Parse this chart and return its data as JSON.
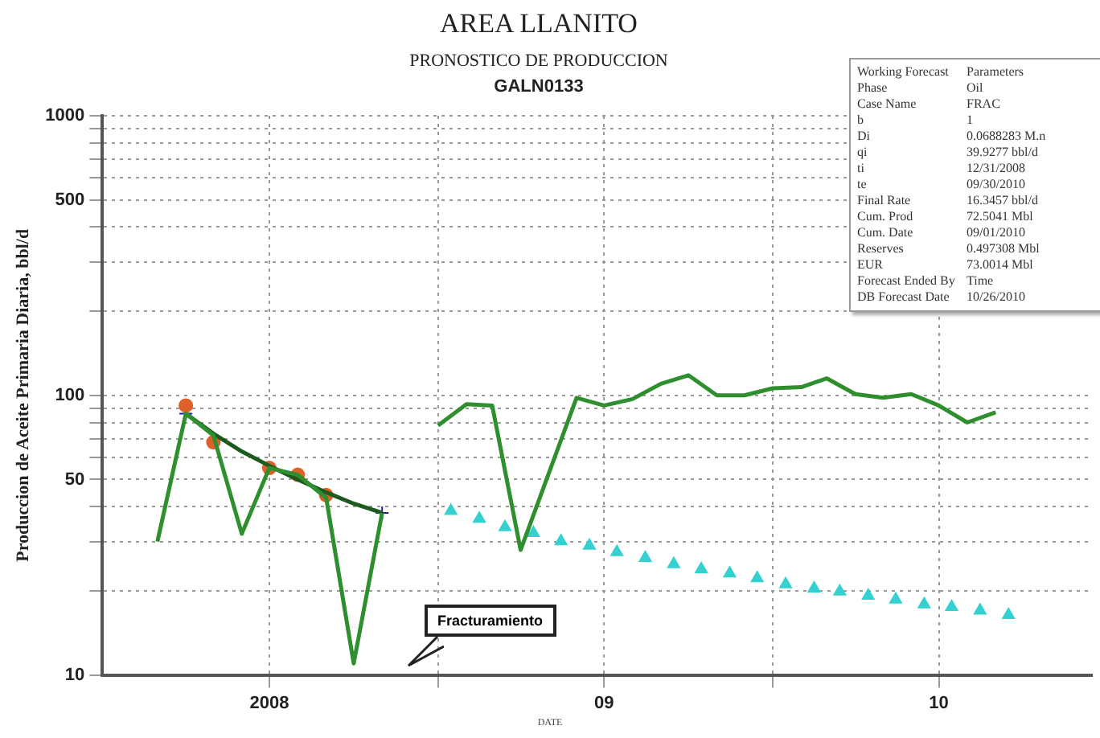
{
  "chart_data": {
    "type": "line",
    "title": "AREA LLANITO",
    "subtitle": "PRONOSTICO DE PRODUCCION\nGALN0133",
    "xlabel": "DATE",
    "ylabel": "Produccion de Aceite Primaria Diaria, bbl/d",
    "log": "y",
    "grid": true,
    "legend": false,
    "xlim": [
      "2008-01-01",
      "2010-12-15"
    ],
    "xticks": [
      {
        "value": "2008-07-01",
        "label": "2008"
      },
      {
        "value": "2009-01-01",
        "label": null
      },
      {
        "value": "2009-07-01",
        "label": "09"
      },
      {
        "value": "2010-01-01",
        "label": null
      },
      {
        "value": "2010-07-01",
        "label": "10"
      }
    ],
    "ylim": [
      10,
      1000
    ],
    "yticks": [
      10,
      {
        "value": 20,
        "label": null
      },
      {
        "value": 30,
        "label": null
      },
      {
        "value": 40,
        "label": null
      },
      50,
      {
        "value": 60,
        "label": null
      },
      {
        "value": 70,
        "label": null
      },
      {
        "value": 80,
        "label": null
      },
      {
        "value": 90,
        "label": null
      },
      100,
      {
        "value": 200,
        "label": null
      },
      {
        "value": 300,
        "label": null
      },
      {
        "value": 400,
        "label": null
      },
      500,
      {
        "value": 600,
        "label": null
      },
      {
        "value": 700,
        "label": null
      },
      {
        "value": 800,
        "label": null
      },
      {
        "value": 900,
        "label": null
      },
      1000
    ],
    "series": [
      {
        "color": "#2f8f2f",
        "marker": "none",
        "x": [
          "2008-03",
          "2008-04",
          "2008-05",
          "2008-06",
          "2008-07",
          "2008-08",
          "2008-09",
          "2008-10",
          "2008-11",
          "2008-12",
          "2009-01",
          "2009-02",
          "2009-03",
          "2009-04",
          "2009-06",
          "2009-07",
          "2009-08",
          "2009-09",
          "2009-10",
          "2009-11",
          "2009-12",
          "2010-01",
          "2010-02",
          "2010-03",
          "2010-04",
          "2010-05",
          "2010-06",
          "2010-07",
          "2010-08",
          "2010-09"
        ],
        "values": [
          30,
          86,
          72,
          32,
          55,
          52,
          43,
          11,
          38,
          null,
          78,
          93,
          92,
          28,
          98,
          92,
          97,
          110,
          118,
          100,
          100,
          106,
          107,
          115,
          101,
          98,
          101,
          92,
          80,
          87
        ]
      },
      {
        "color": "#1d5a1d",
        "marker": "none",
        "x": [
          "2008-04",
          "2008-05",
          "2008-06",
          "2008-07",
          "2008-08",
          "2008-09",
          "2008-10",
          "2008-11"
        ],
        "values": [
          86,
          73,
          63,
          56,
          50,
          45,
          41,
          38
        ]
      },
      {
        "type": "scatter",
        "color": "#35d0d0",
        "marker": "triangle",
        "x": [
          "2009-01-15",
          "2009-02-15",
          "2009-03-15",
          "2009-04-15",
          "2009-05-15",
          "2009-06-15",
          "2009-07-15",
          "2009-08-15",
          "2009-09-15",
          "2009-10-15",
          "2009-11-15",
          "2009-12-15",
          "2010-01-15",
          "2010-02-15",
          "2010-03-15",
          "2010-04-15",
          "2010-05-15",
          "2010-06-15",
          "2010-07-15",
          "2010-08-15",
          "2010-09-15"
        ],
        "values": [
          38.6,
          36.2,
          33.8,
          32.2,
          30.1,
          29,
          27.5,
          26.2,
          24.9,
          23.9,
          23.1,
          22.2,
          21.1,
          20.4,
          19.9,
          19.2,
          18.6,
          17.9,
          17.5,
          17,
          16.4
        ]
      },
      {
        "type": "scatter",
        "color": "#e0602a",
        "marker": "circle",
        "x": [
          "2008-04",
          "2008-05",
          "2008-07",
          "2008-08",
          "2008-09"
        ],
        "values": [
          92,
          68,
          55,
          52,
          44
        ]
      },
      {
        "type": "scatter",
        "color": "#1c1ca8",
        "marker": "cross",
        "x": [
          "2008-04",
          "2008-11"
        ],
        "values": [
          86,
          38
        ]
      }
    ],
    "annotations": [
      "Working Forecast",
      "Parameters",
      "Phase",
      "Oil",
      "Case Name",
      "FRAC",
      "b",
      "1",
      "Di",
      "0.0688283 M.n",
      "qi",
      "39.9277 bbl/d",
      "ti",
      "12/31/2008",
      "te",
      "09/30/2010",
      "Final Rate",
      "16.3457 bbl/d",
      "Cum. Prod",
      "72.5041 Mbl",
      "Cum. Date",
      "09/01/2010",
      "Reserves",
      "0.497308 Mbl",
      "EUR",
      "73.0014 Mbl",
      "Forecast Ended By",
      "Time",
      "DB Forecast Date",
      "10/26/2010",
      "Fracturamiento"
    ]
  }
}
